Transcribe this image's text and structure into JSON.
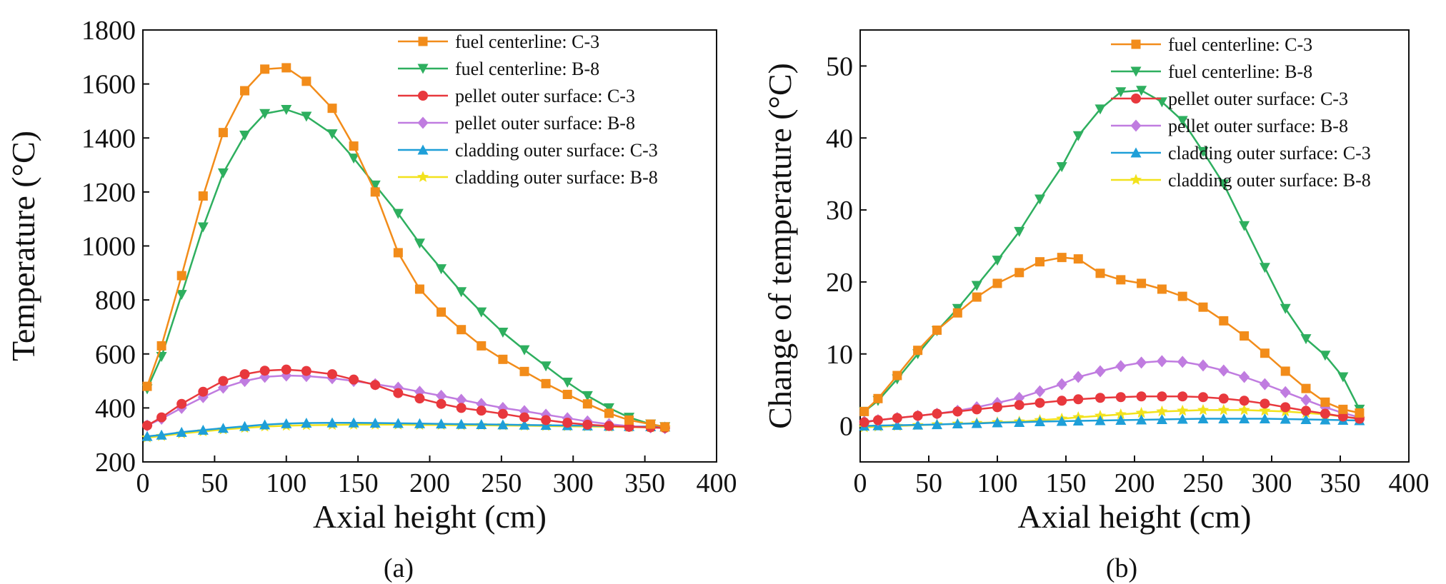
{
  "figure": {
    "panel_labels": [
      "(a)",
      "(b)"
    ]
  },
  "chart_data": [
    {
      "type": "line",
      "panel": "(a)",
      "xlabel": "Axial height (cm)",
      "ylabel": "Temperature (°C)",
      "xlim": [
        0,
        400
      ],
      "ylim": [
        200,
        1800
      ],
      "xticks": [
        0,
        50,
        100,
        150,
        200,
        250,
        300,
        350,
        400
      ],
      "yticks": [
        200,
        400,
        600,
        800,
        1000,
        1200,
        1400,
        1600,
        1800
      ],
      "legend_position": "top-right",
      "x": [
        3,
        13,
        27,
        42,
        56,
        71,
        85,
        100,
        114,
        132,
        147,
        162,
        178,
        193,
        208,
        222,
        236,
        251,
        266,
        281,
        296,
        310,
        325,
        339,
        354,
        364
      ],
      "series": [
        {
          "name": "fuel centerline: C-3",
          "color": "#F28C1A",
          "marker": "square",
          "values": [
            480,
            630,
            890,
            1185,
            1420,
            1575,
            1655,
            1660,
            1610,
            1510,
            1370,
            1200,
            975,
            840,
            755,
            690,
            630,
            580,
            535,
            490,
            450,
            415,
            380,
            355,
            340,
            330
          ]
        },
        {
          "name": "fuel centerline: B-8",
          "color": "#2EAF5F",
          "marker": "triangle-down",
          "values": [
            470,
            590,
            820,
            1070,
            1270,
            1410,
            1490,
            1505,
            1480,
            1415,
            1325,
            1225,
            1120,
            1010,
            915,
            830,
            755,
            680,
            615,
            555,
            495,
            445,
            400,
            365,
            340,
            330
          ]
        },
        {
          "name": "pellet outer surface: C-3",
          "color": "#E8383D",
          "marker": "circle",
          "values": [
            335,
            365,
            415,
            460,
            500,
            525,
            538,
            542,
            537,
            525,
            505,
            485,
            455,
            435,
            415,
            400,
            390,
            378,
            365,
            355,
            345,
            338,
            333,
            330,
            328,
            326
          ]
        },
        {
          "name": "pellet outer surface: B-8",
          "color": "#C07CE0",
          "marker": "diamond",
          "values": [
            335,
            360,
            400,
            440,
            475,
            500,
            515,
            520,
            518,
            510,
            500,
            488,
            475,
            460,
            445,
            430,
            415,
            400,
            388,
            375,
            362,
            350,
            340,
            333,
            328,
            325
          ]
        },
        {
          "name": "cladding outer surface: C-3",
          "color": "#1E9FD8",
          "marker": "triangle-up",
          "values": [
            295,
            300,
            310,
            318,
            325,
            332,
            338,
            342,
            344,
            345,
            345,
            344,
            343,
            342,
            341,
            340,
            339,
            338,
            337,
            336,
            335,
            334,
            333,
            332,
            331,
            330
          ]
        },
        {
          "name": "cladding outer surface: B-8",
          "color": "#F2E21C",
          "marker": "star",
          "values": [
            290,
            296,
            305,
            313,
            320,
            326,
            331,
            334,
            336,
            337,
            338,
            338,
            338,
            337,
            337,
            336,
            336,
            335,
            334,
            333,
            332,
            331,
            330,
            329,
            328,
            327
          ]
        }
      ]
    },
    {
      "type": "line",
      "panel": "(b)",
      "xlabel": "Axial height (cm)",
      "ylabel": "Change of temperature (°C)",
      "xlim": [
        0,
        400
      ],
      "ylim": [
        -5,
        55
      ],
      "xticks": [
        0,
        50,
        100,
        150,
        200,
        250,
        300,
        350,
        400
      ],
      "yticks": [
        0,
        10,
        20,
        30,
        40,
        50
      ],
      "legend_position": "top-right",
      "x": [
        3,
        13,
        27,
        42,
        56,
        71,
        85,
        100,
        116,
        131,
        147,
        159,
        175,
        190,
        205,
        220,
        235,
        250,
        265,
        280,
        295,
        310,
        325,
        339,
        352,
        364
      ],
      "series": [
        {
          "name": "fuel centerline: C-3",
          "color": "#F28C1A",
          "marker": "square",
          "values": [
            2,
            3.8,
            7,
            10.5,
            13.3,
            15.7,
            17.9,
            19.8,
            21.3,
            22.8,
            23.4,
            23.2,
            21.2,
            20.3,
            19.8,
            19,
            18,
            16.5,
            14.6,
            12.5,
            10.1,
            7.6,
            5.2,
            3.3,
            2.3,
            1.8
          ]
        },
        {
          "name": "fuel centerline: B-8",
          "color": "#2EAF5F",
          "marker": "triangle-down",
          "values": [
            2,
            3.5,
            6.5,
            10,
            13.2,
            16.3,
            19.5,
            23,
            27,
            31.5,
            36,
            40.3,
            44,
            46.4,
            46.6,
            45,
            42.4,
            38.1,
            33.6,
            27.8,
            22,
            16.3,
            12.1,
            9.8,
            6.8,
            2.3
          ]
        },
        {
          "name": "pellet outer surface: C-3",
          "color": "#E8383D",
          "marker": "circle",
          "values": [
            0.5,
            0.8,
            1.1,
            1.4,
            1.7,
            2,
            2.3,
            2.6,
            2.9,
            3.2,
            3.5,
            3.7,
            3.9,
            4,
            4.1,
            4.1,
            4.1,
            4,
            3.8,
            3.5,
            3.1,
            2.6,
            2.1,
            1.7,
            1.3,
            1
          ]
        },
        {
          "name": "pellet outer surface: B-8",
          "color": "#C07CE0",
          "marker": "diamond",
          "values": [
            0.6,
            0.8,
            1.1,
            1.4,
            1.7,
            2.1,
            2.6,
            3.2,
            3.9,
            4.8,
            5.8,
            6.8,
            7.6,
            8.3,
            8.8,
            9,
            8.9,
            8.4,
            7.7,
            6.8,
            5.8,
            4.7,
            3.6,
            2.6,
            1.8,
            1.2
          ]
        },
        {
          "name": "cladding outer surface: C-3",
          "color": "#1E9FD8",
          "marker": "triangle-up",
          "values": [
            0,
            0.05,
            0.1,
            0.15,
            0.2,
            0.3,
            0.35,
            0.45,
            0.5,
            0.6,
            0.65,
            0.7,
            0.75,
            0.8,
            0.85,
            0.9,
            0.95,
            1,
            1,
            1,
            1,
            0.95,
            0.9,
            0.85,
            0.8,
            0.75
          ]
        },
        {
          "name": "cladding outer surface: B-8",
          "color": "#F2E21C",
          "marker": "star",
          "values": [
            -0.2,
            -0.1,
            0,
            0.1,
            0.2,
            0.3,
            0.4,
            0.5,
            0.6,
            0.8,
            1,
            1.2,
            1.4,
            1.6,
            1.8,
            2,
            2.1,
            2.2,
            2.2,
            2.2,
            2.1,
            2,
            1.8,
            1.6,
            1.3,
            1
          ]
        }
      ]
    }
  ]
}
